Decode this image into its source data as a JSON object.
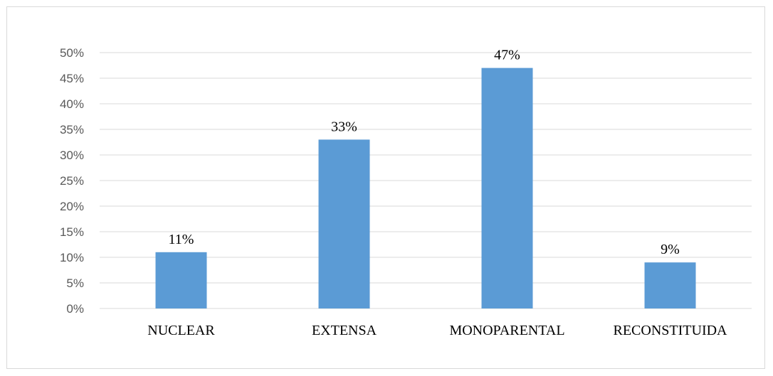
{
  "chart_data": {
    "type": "bar",
    "categories": [
      "NUCLEAR",
      "EXTENSA",
      "MONOPARENTAL",
      "RECONSTITUIDA"
    ],
    "values": [
      0.11,
      0.33,
      0.47,
      0.09
    ],
    "data_labels": [
      "11%",
      "33%",
      "47%",
      "9%"
    ],
    "ylim": [
      0,
      0.5
    ],
    "ytick_values": [
      0,
      0.05,
      0.1,
      0.15,
      0.2,
      0.25,
      0.3,
      0.35,
      0.4,
      0.45,
      0.5
    ],
    "ytick_labels": [
      "0%",
      "5%",
      "10%",
      "15%",
      "20%",
      "25%",
      "30%",
      "35%",
      "40%",
      "45%",
      "50%"
    ],
    "grid": true,
    "bar_color": "#5b9bd5",
    "grid_color": "#d9d9d9"
  }
}
